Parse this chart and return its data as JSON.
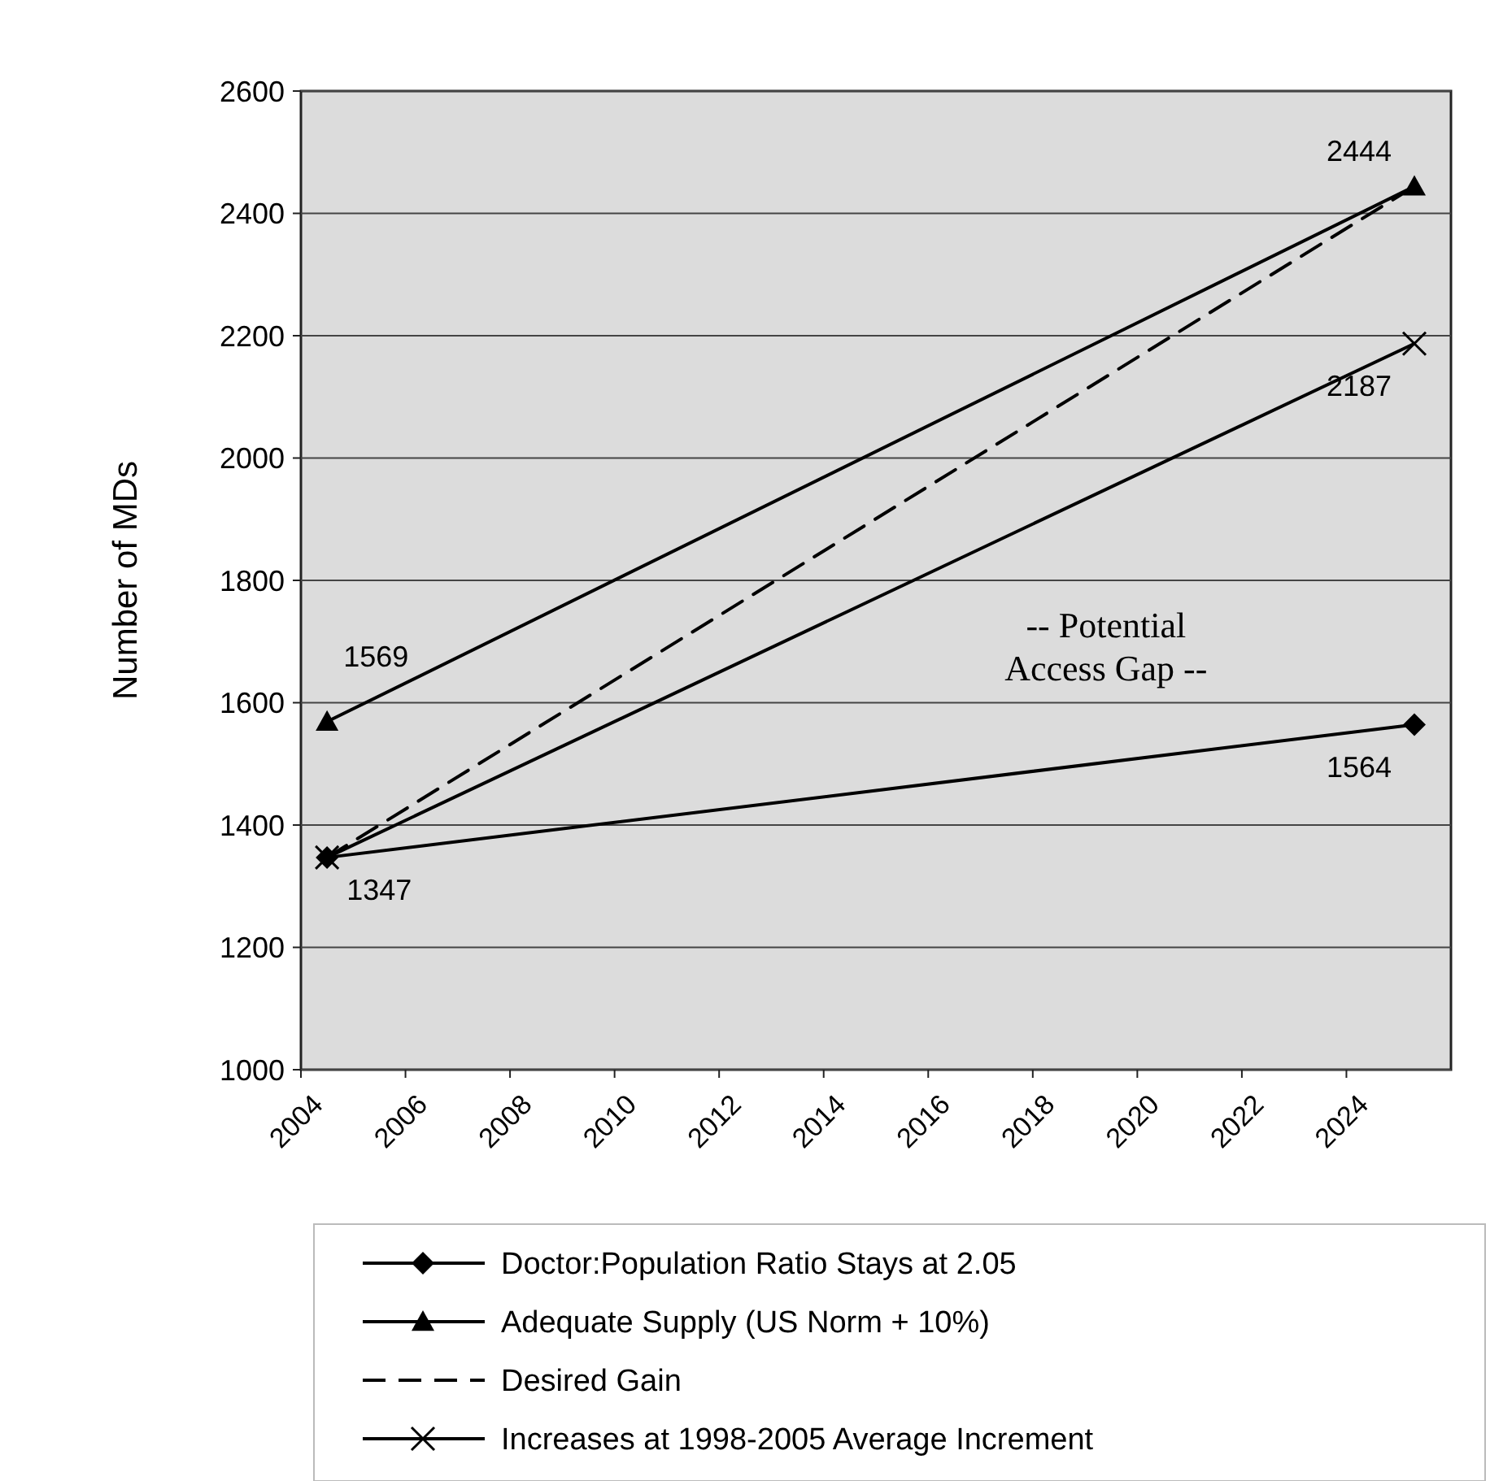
{
  "chart_data": {
    "type": "line",
    "ylabel": "Number of MDs",
    "xlim": [
      2004,
      2026
    ],
    "xticks": [
      2004,
      2006,
      2008,
      2010,
      2012,
      2014,
      2016,
      2018,
      2020,
      2022,
      2024
    ],
    "ylim": [
      1000,
      2600
    ],
    "yticks": [
      1000,
      1200,
      1400,
      1600,
      1800,
      2000,
      2200,
      2400,
      2600
    ],
    "grid": "y",
    "legend": "bottom",
    "x": [
      2004.5,
      2025.3
    ],
    "series": [
      {
        "name": "Doctor:Population Ratio Stays at 2.05",
        "color": "#000000",
        "values": [
          1347,
          1564
        ],
        "marker": "diamond",
        "line_style": "solid",
        "value_labels": [
          null,
          "1564"
        ]
      },
      {
        "name": "Adequate Supply (US Norm + 10%)",
        "color": "#000000",
        "values": [
          1569,
          2444
        ],
        "marker": "triangle",
        "line_style": "solid",
        "value_labels": [
          "1569",
          "2444"
        ]
      },
      {
        "name": "Desired Gain",
        "color": "#000000",
        "values": [
          1347,
          2444
        ],
        "line_style": "dashed",
        "value_labels": [
          null,
          null
        ]
      },
      {
        "name": "Increases at 1998-2005 Average Increment",
        "color": "#000000",
        "values": [
          1347,
          2187
        ],
        "marker": "cross",
        "line_style": "solid",
        "value_labels": [
          "1347",
          "2187"
        ]
      }
    ],
    "annotations": [
      "-- Potential\nAccess Gap --"
    ]
  }
}
